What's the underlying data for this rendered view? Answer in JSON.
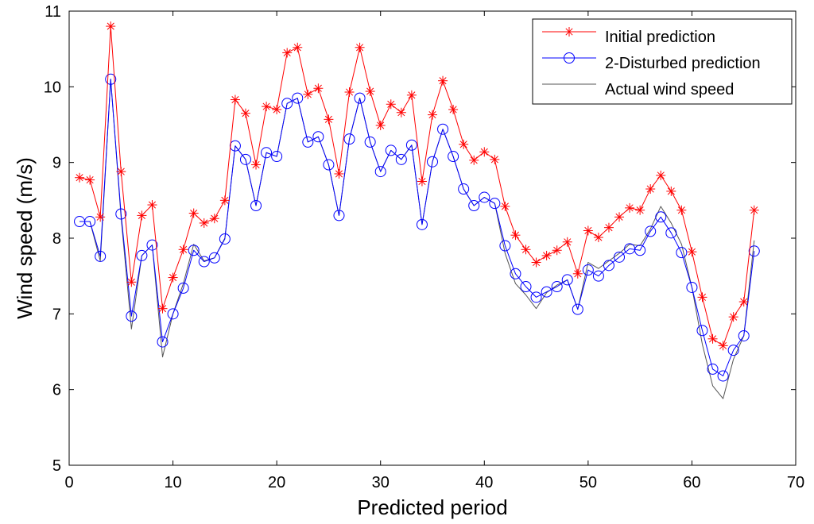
{
  "chart_data": {
    "type": "line",
    "title": "",
    "xlabel": "Predicted period",
    "ylabel": "Wind speed (m/s)",
    "xlim": [
      0,
      70
    ],
    "ylim": [
      5,
      11
    ],
    "xticks": [
      0,
      10,
      20,
      30,
      40,
      50,
      60,
      70
    ],
    "yticks": [
      5,
      6,
      7,
      8,
      9,
      10,
      11
    ],
    "grid": false,
    "legend_position": "top-right",
    "x": [
      1,
      2,
      3,
      4,
      5,
      6,
      7,
      8,
      9,
      10,
      11,
      12,
      13,
      14,
      15,
      16,
      17,
      18,
      19,
      20,
      21,
      22,
      23,
      24,
      25,
      26,
      27,
      28,
      29,
      30,
      31,
      32,
      33,
      34,
      35,
      36,
      37,
      38,
      39,
      40,
      41,
      42,
      43,
      44,
      45,
      46,
      47,
      48,
      49,
      50,
      51,
      52,
      53,
      54,
      55,
      56,
      57,
      58,
      59,
      60,
      61,
      62,
      63,
      64,
      65,
      66
    ],
    "series": [
      {
        "name": "Initial prediction",
        "color": "#ff0000",
        "marker": "star",
        "values": [
          8.8,
          8.77,
          8.28,
          10.8,
          8.88,
          7.42,
          8.3,
          8.44,
          7.07,
          7.48,
          7.85,
          8.33,
          8.2,
          8.26,
          8.5,
          9.83,
          9.65,
          8.97,
          9.74,
          9.7,
          10.45,
          10.52,
          9.9,
          9.98,
          9.57,
          8.85,
          9.93,
          10.52,
          9.94,
          9.49,
          9.77,
          9.66,
          9.89,
          8.75,
          9.63,
          10.08,
          9.7,
          9.24,
          9.03,
          9.14,
          9.04,
          8.42,
          8.04,
          7.85,
          7.68,
          7.77,
          7.84,
          7.95,
          7.53,
          8.1,
          8.01,
          8.14,
          8.28,
          8.4,
          8.37,
          8.65,
          8.83,
          8.62,
          8.37,
          7.82,
          7.22,
          6.67,
          6.58,
          6.96,
          7.16,
          8.37
        ]
      },
      {
        "name": "2-Disturbed prediction",
        "color": "#0000ff",
        "marker": "circle",
        "values": [
          8.22,
          8.22,
          7.76,
          10.1,
          8.32,
          6.97,
          7.77,
          7.91,
          6.63,
          7.0,
          7.34,
          7.84,
          7.69,
          7.74,
          7.99,
          9.22,
          9.04,
          8.43,
          9.13,
          9.08,
          9.78,
          9.85,
          9.27,
          9.34,
          8.97,
          8.3,
          9.31,
          9.85,
          9.27,
          8.88,
          9.16,
          9.04,
          9.23,
          8.18,
          9.01,
          9.44,
          9.08,
          8.65,
          8.43,
          8.54,
          8.46,
          7.9,
          7.53,
          7.36,
          7.22,
          7.29,
          7.36,
          7.45,
          7.06,
          7.58,
          7.5,
          7.64,
          7.75,
          7.86,
          7.84,
          8.09,
          8.28,
          8.07,
          7.81,
          7.35,
          6.78,
          6.27,
          6.18,
          6.52,
          6.71,
          7.83
        ]
      },
      {
        "name": "Actual wind speed",
        "color": "#555555",
        "marker": "none",
        "values": [
          8.22,
          8.22,
          7.7,
          10.1,
          8.28,
          6.8,
          7.77,
          7.91,
          6.43,
          7.0,
          7.4,
          7.92,
          7.7,
          7.74,
          8.0,
          9.22,
          9.04,
          8.43,
          9.13,
          9.08,
          9.78,
          9.85,
          9.27,
          9.34,
          8.97,
          8.3,
          9.31,
          9.85,
          9.27,
          8.88,
          9.16,
          9.04,
          9.23,
          8.18,
          9.01,
          9.44,
          9.08,
          8.65,
          8.43,
          8.54,
          8.46,
          7.8,
          7.4,
          7.25,
          7.07,
          7.28,
          7.38,
          7.45,
          7.06,
          7.68,
          7.6,
          7.7,
          7.8,
          7.92,
          7.9,
          8.12,
          8.42,
          8.2,
          7.92,
          7.35,
          6.6,
          6.05,
          5.88,
          6.4,
          6.71,
          7.97
        ]
      }
    ]
  }
}
